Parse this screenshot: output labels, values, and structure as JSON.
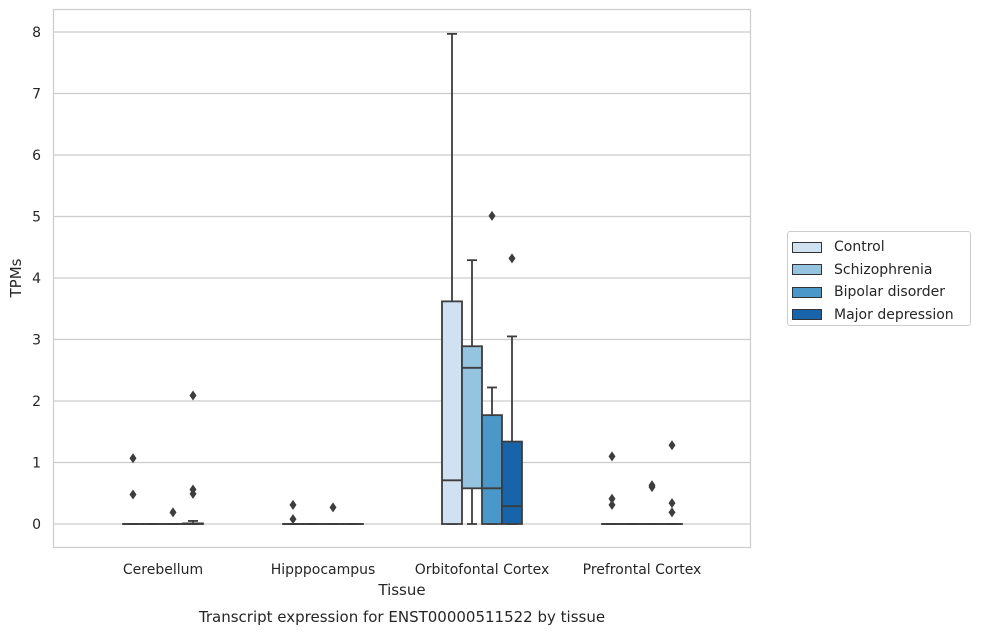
{
  "chart_data": {
    "type": "box",
    "title": "Transcript expression for ENST00000511522 by tissue",
    "xlabel": "Tissue",
    "ylabel": "TPMs",
    "ylim": [
      -0.4,
      8.4
    ],
    "yticks": [
      0,
      1,
      2,
      3,
      4,
      5,
      6,
      7,
      8
    ],
    "grid": "horizontal",
    "legend_position": "right",
    "categories": [
      "Cerebellum",
      "Hipppocampus",
      "Orbitofontal Cortex",
      "Prefrontal Cortex"
    ],
    "series": [
      {
        "name": "Control",
        "color": "#d0e1f2",
        "boxes": [
          {
            "q1": 0,
            "median": 0,
            "q3": 0,
            "whislo": 0,
            "whishi": 0,
            "fliers": [
              1.07,
              0.48
            ]
          },
          {
            "q1": 0,
            "median": 0,
            "q3": 0,
            "whislo": 0,
            "whishi": 0,
            "fliers": [
              0.31,
              0.08
            ]
          },
          {
            "q1": 0,
            "median": 0.71,
            "q3": 3.62,
            "whislo": 0,
            "whishi": 7.97,
            "fliers": []
          },
          {
            "q1": 0,
            "median": 0,
            "q3": 0,
            "whislo": 0,
            "whishi": 0,
            "fliers": [
              1.1,
              0.41,
              0.31
            ]
          }
        ]
      },
      {
        "name": "Schizophrenia",
        "color": "#94c4df",
        "boxes": [
          {
            "q1": 0,
            "median": 0,
            "q3": 0,
            "whislo": 0,
            "whishi": 0,
            "fliers": []
          },
          {
            "q1": 0,
            "median": 0,
            "q3": 0,
            "whislo": 0,
            "whishi": 0,
            "fliers": []
          },
          {
            "q1": 0.58,
            "median": 2.54,
            "q3": 2.89,
            "whislo": 0,
            "whishi": 4.29,
            "fliers": []
          },
          {
            "q1": 0,
            "median": 0,
            "q3": 0,
            "whislo": 0,
            "whishi": 0,
            "fliers": []
          }
        ]
      },
      {
        "name": "Bipolar disorder",
        "color": "#4a98c9",
        "boxes": [
          {
            "q1": 0,
            "median": 0,
            "q3": 0,
            "whislo": 0,
            "whishi": 0,
            "fliers": [
              0.19
            ]
          },
          {
            "q1": 0,
            "median": 0,
            "q3": 0,
            "whislo": 0,
            "whishi": 0,
            "fliers": [
              0.27
            ]
          },
          {
            "q1": 0,
            "median": 0.58,
            "q3": 1.77,
            "whislo": 0,
            "whishi": 2.22,
            "fliers": [
              5.01
            ]
          },
          {
            "q1": 0,
            "median": 0,
            "q3": 0,
            "whislo": 0,
            "whishi": 0,
            "fliers": [
              0.63,
              0.6
            ]
          }
        ]
      },
      {
        "name": "Major depression",
        "color": "#1764ab",
        "boxes": [
          {
            "q1": 0,
            "median": 0,
            "q3": 0.01,
            "whislo": 0,
            "whishi": 0.05,
            "fliers": [
              2.09,
              0.56,
              0.49
            ]
          },
          {
            "q1": 0,
            "median": 0,
            "q3": 0,
            "whislo": 0,
            "whishi": 0,
            "fliers": []
          },
          {
            "q1": 0,
            "median": 0.29,
            "q3": 1.34,
            "whislo": 0,
            "whishi": 3.05,
            "fliers": [
              4.32
            ]
          },
          {
            "q1": 0,
            "median": 0,
            "q3": 0,
            "whislo": 0,
            "whishi": 0,
            "fliers": [
              1.28,
              0.34,
              0.19
            ]
          }
        ]
      }
    ]
  }
}
